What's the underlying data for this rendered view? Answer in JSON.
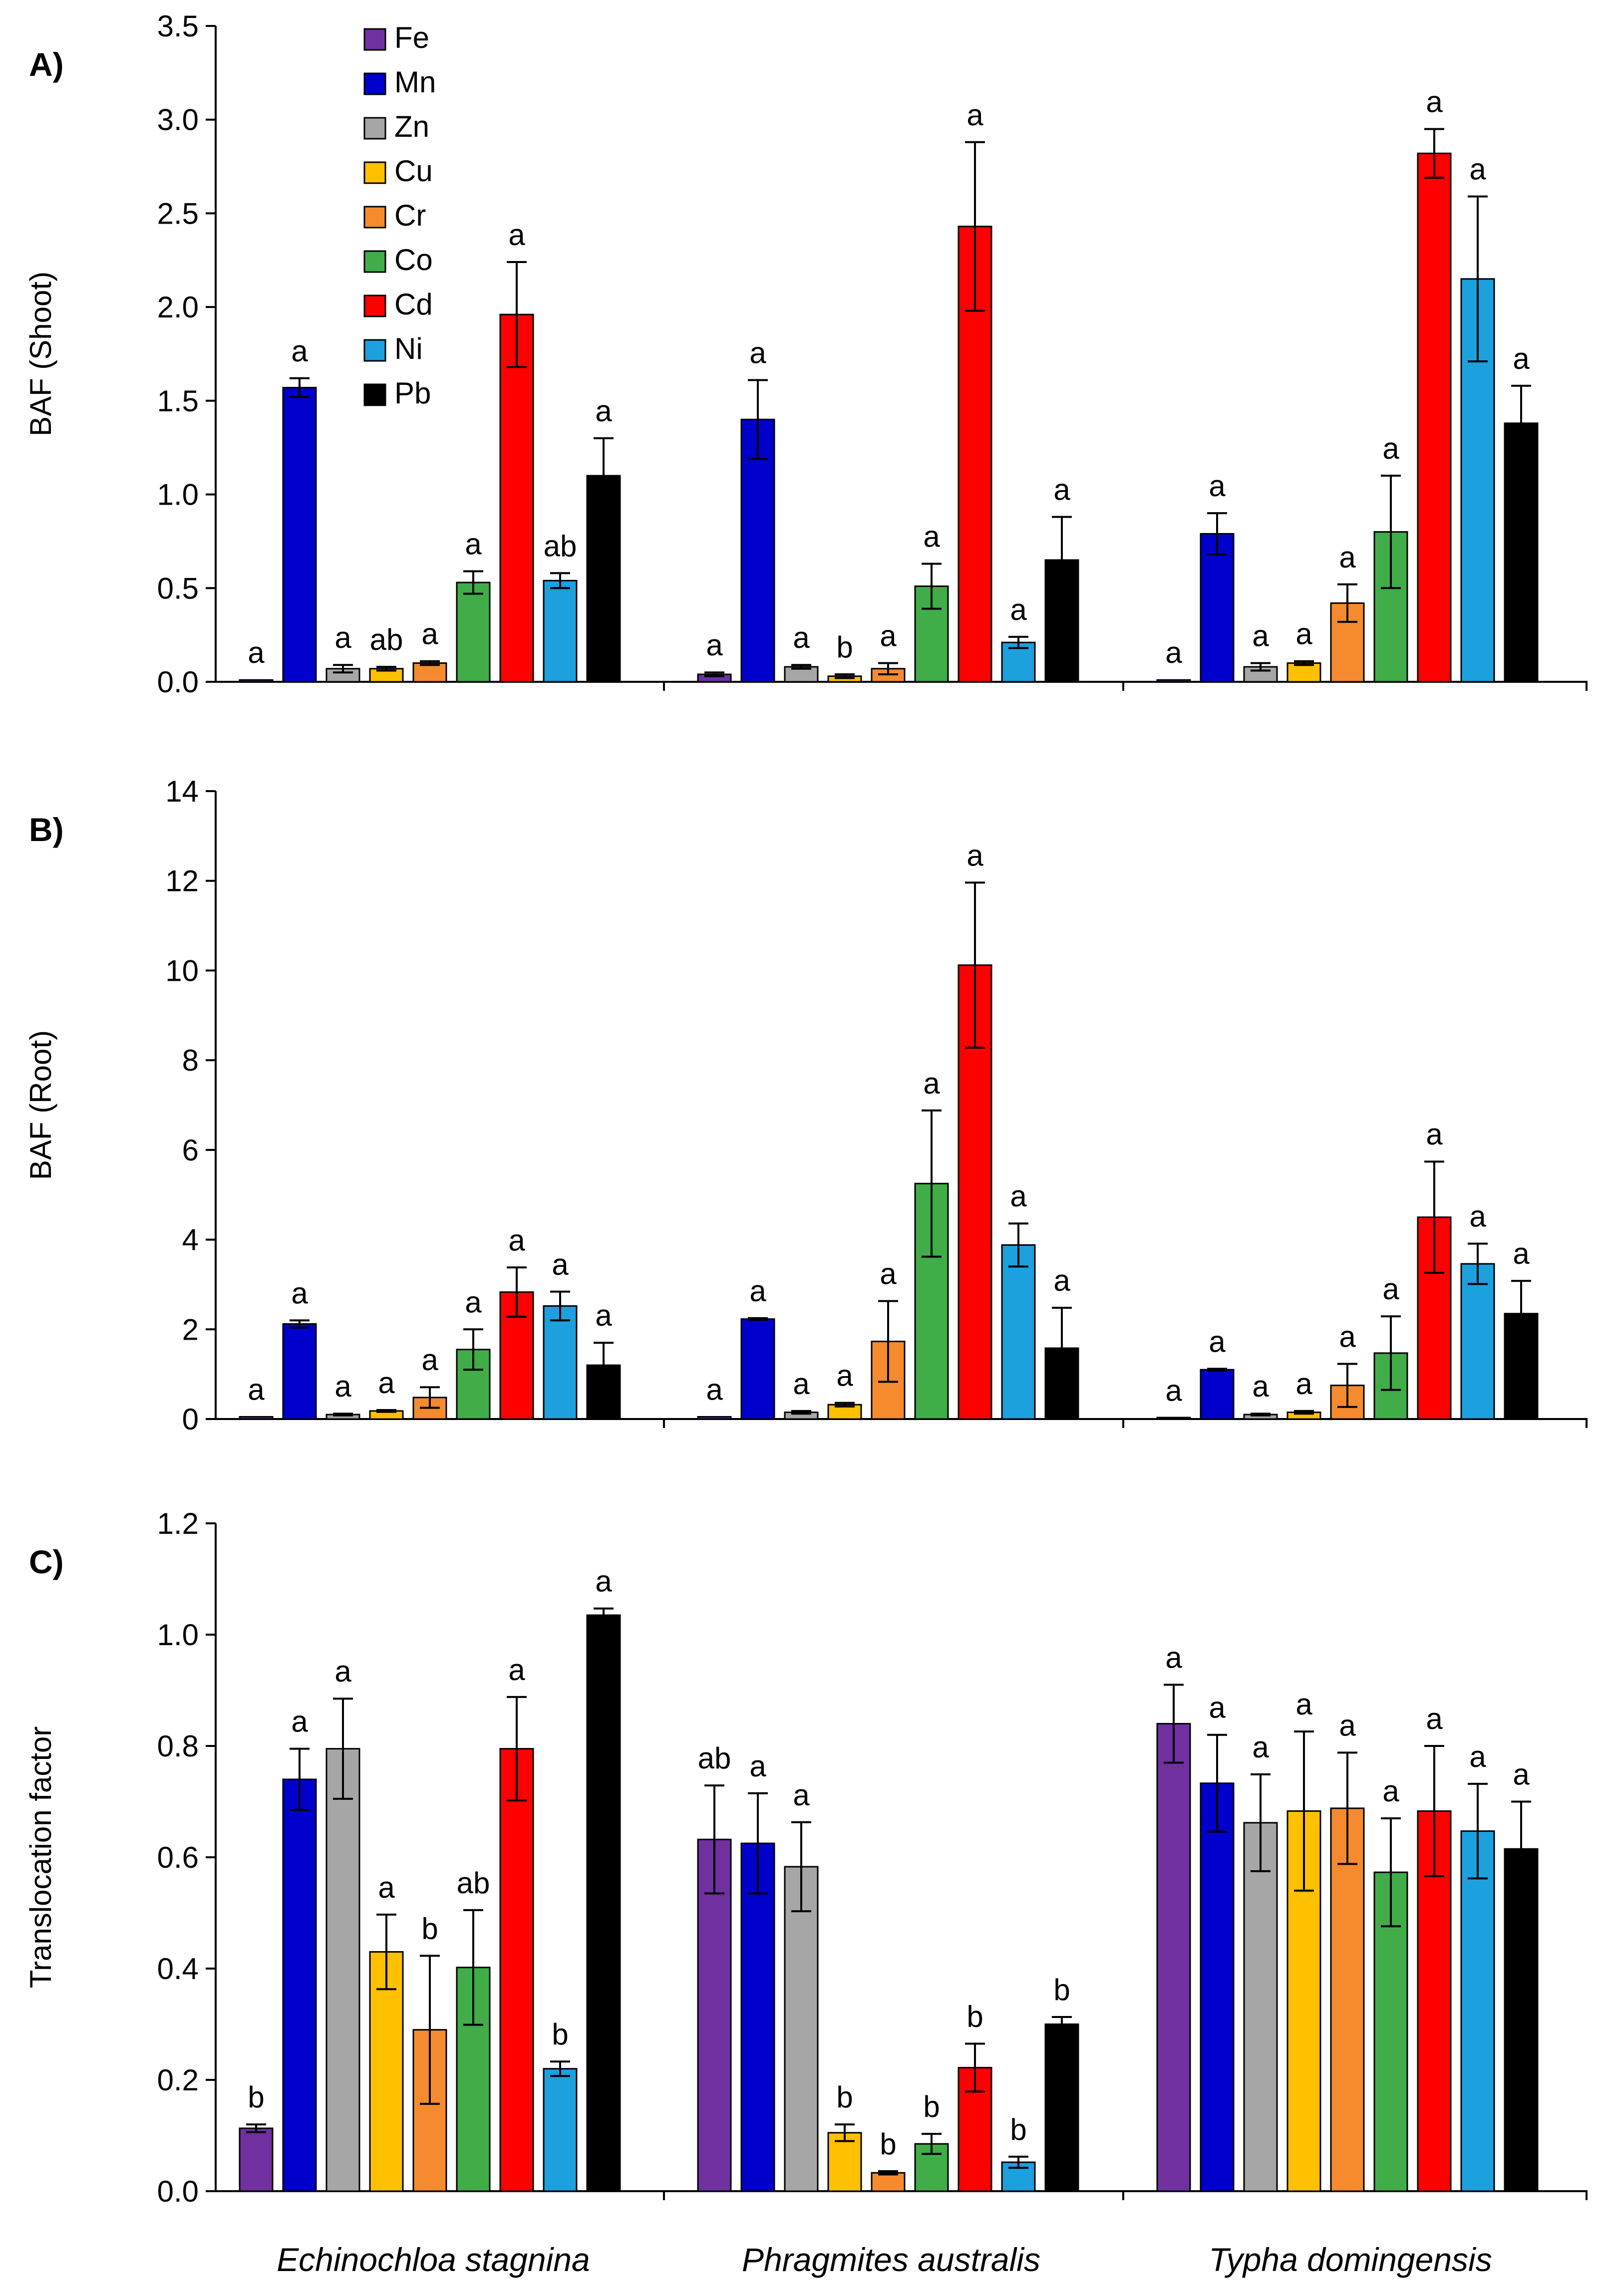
{
  "metals": [
    {
      "name": "Fe",
      "color": "#7030A0"
    },
    {
      "name": "Mn",
      "color": "#0000CC"
    },
    {
      "name": "Zn",
      "color": "#A6A6A6"
    },
    {
      "name": "Cu",
      "color": "#FFC000"
    },
    {
      "name": "Cr",
      "color": "#F58B2E"
    },
    {
      "name": "Co",
      "color": "#40AD48"
    },
    {
      "name": "Cd",
      "color": "#FF0000"
    },
    {
      "name": "Ni",
      "color": "#1CA0DE"
    },
    {
      "name": "Pb",
      "color": "#000000"
    }
  ],
  "chart_data": [
    {
      "type": "bar",
      "panel_label": "A)",
      "ylabel": "BAF (Shoot)",
      "ylim": [
        0,
        3.5
      ],
      "yticks": [
        "0.0",
        "0.5",
        "1.0",
        "1.5",
        "2.0",
        "2.5",
        "3.0",
        "3.5"
      ],
      "legend": "top-left",
      "categories": [
        "Echinochloa stagnina",
        "Phragmites australis",
        "Typha domingensis"
      ],
      "series": [
        {
          "name": "Fe",
          "values": [
            0.01,
            0.04,
            0.01
          ],
          "errors": [
            0.0,
            0.01,
            0.0
          ],
          "labels": [
            "a",
            "a",
            "a"
          ]
        },
        {
          "name": "Mn",
          "values": [
            1.57,
            1.4,
            0.79
          ],
          "errors": [
            0.05,
            0.21,
            0.11
          ],
          "labels": [
            "a",
            "a",
            "a"
          ]
        },
        {
          "name": "Zn",
          "values": [
            0.07,
            0.08,
            0.08
          ],
          "errors": [
            0.02,
            0.01,
            0.02
          ],
          "labels": [
            "a",
            "a",
            "a"
          ]
        },
        {
          "name": "Cu",
          "values": [
            0.07,
            0.03,
            0.1
          ],
          "errors": [
            0.01,
            0.01,
            0.01
          ],
          "labels": [
            "ab",
            "b",
            "a"
          ]
        },
        {
          "name": "Cr",
          "values": [
            0.1,
            0.07,
            0.42
          ],
          "errors": [
            0.01,
            0.03,
            0.1
          ],
          "labels": [
            "a",
            "a",
            "a"
          ]
        },
        {
          "name": "Co",
          "values": [
            0.53,
            0.51,
            0.8
          ],
          "errors": [
            0.06,
            0.12,
            0.3
          ],
          "labels": [
            "a",
            "a",
            "a"
          ]
        },
        {
          "name": "Cd",
          "values": [
            1.96,
            2.43,
            2.82
          ],
          "errors": [
            0.28,
            0.45,
            0.13
          ],
          "labels": [
            "a",
            "a",
            "a"
          ]
        },
        {
          "name": "Ni",
          "values": [
            0.54,
            0.21,
            2.15
          ],
          "errors": [
            0.04,
            0.03,
            0.44
          ],
          "labels": [
            "ab",
            "a",
            "a"
          ]
        },
        {
          "name": "Pb",
          "values": [
            1.1,
            0.65,
            1.38
          ],
          "errors": [
            0.2,
            0.23,
            0.2
          ],
          "labels": [
            "a",
            "a",
            "a"
          ]
        }
      ]
    },
    {
      "type": "bar",
      "panel_label": "B)",
      "ylabel": "BAF (Root)",
      "ylim": [
        0,
        14
      ],
      "yticks": [
        "0",
        "2",
        "4",
        "6",
        "8",
        "10",
        "12",
        "14"
      ],
      "categories": [
        "Echinochloa stagnina",
        "Phragmites australis",
        "Typha domingensis"
      ],
      "series": [
        {
          "name": "Fe",
          "values": [
            0.05,
            0.05,
            0.03
          ],
          "errors": [
            0.0,
            0.0,
            0.0
          ],
          "labels": [
            "a",
            "a",
            "a"
          ]
        },
        {
          "name": "Mn",
          "values": [
            2.12,
            2.23,
            1.1
          ],
          "errors": [
            0.08,
            0.02,
            0.02
          ],
          "labels": [
            "a",
            "a",
            "a"
          ]
        },
        {
          "name": "Zn",
          "values": [
            0.1,
            0.15,
            0.1
          ],
          "errors": [
            0.02,
            0.03,
            0.02
          ],
          "labels": [
            "a",
            "a",
            "a"
          ]
        },
        {
          "name": "Cu",
          "values": [
            0.18,
            0.32,
            0.15
          ],
          "errors": [
            0.02,
            0.04,
            0.03
          ],
          "labels": [
            "a",
            "a",
            "a"
          ]
        },
        {
          "name": "Cr",
          "values": [
            0.48,
            1.73,
            0.75
          ],
          "errors": [
            0.23,
            0.9,
            0.48
          ],
          "labels": [
            "a",
            "a",
            "a"
          ]
        },
        {
          "name": "Co",
          "values": [
            1.55,
            5.25,
            1.47
          ],
          "errors": [
            0.45,
            1.63,
            0.82
          ],
          "labels": [
            "a",
            "a",
            "a"
          ]
        },
        {
          "name": "Cd",
          "values": [
            2.83,
            10.12,
            4.5
          ],
          "errors": [
            0.55,
            1.84,
            1.24
          ],
          "labels": [
            "a",
            "a",
            "a"
          ]
        },
        {
          "name": "Ni",
          "values": [
            2.52,
            3.88,
            3.46
          ],
          "errors": [
            0.32,
            0.48,
            0.45
          ],
          "labels": [
            "a",
            "a",
            "a"
          ]
        },
        {
          "name": "Pb",
          "values": [
            1.2,
            1.58,
            2.35
          ],
          "errors": [
            0.5,
            0.9,
            0.73
          ],
          "labels": [
            "a",
            "a",
            "a"
          ]
        }
      ]
    },
    {
      "type": "bar",
      "panel_label": "C)",
      "ylabel": "Translocation factor",
      "ylim": [
        0,
        1.2
      ],
      "yticks": [
        "0.0",
        "0.2",
        "0.4",
        "0.6",
        "0.8",
        "1.0",
        "1.2"
      ],
      "categories": [
        "Echinochloa stagnina",
        "Phragmites australis",
        "Typha domingensis"
      ],
      "series": [
        {
          "name": "Fe",
          "values": [
            0.113,
            0.632,
            0.84
          ],
          "errors": [
            0.007,
            0.097,
            0.07
          ],
          "labels": [
            "b",
            "ab",
            "a"
          ]
        },
        {
          "name": "Mn",
          "values": [
            0.74,
            0.625,
            0.733
          ],
          "errors": [
            0.055,
            0.09,
            0.087
          ],
          "labels": [
            "a",
            "a",
            "a"
          ]
        },
        {
          "name": "Zn",
          "values": [
            0.795,
            0.583,
            0.662
          ],
          "errors": [
            0.09,
            0.08,
            0.087
          ],
          "labels": [
            "a",
            "a",
            "a"
          ]
        },
        {
          "name": "Cu",
          "values": [
            0.43,
            0.105,
            0.683
          ],
          "errors": [
            0.067,
            0.015,
            0.143
          ],
          "labels": [
            "a",
            "b",
            "a"
          ]
        },
        {
          "name": "Cr",
          "values": [
            0.29,
            0.033,
            0.688
          ],
          "errors": [
            0.133,
            0.003,
            0.1
          ],
          "labels": [
            "b",
            "b",
            "a"
          ]
        },
        {
          "name": "Co",
          "values": [
            0.402,
            0.085,
            0.573
          ],
          "errors": [
            0.103,
            0.018,
            0.097
          ],
          "labels": [
            "ab",
            "b",
            "a"
          ]
        },
        {
          "name": "Cd",
          "values": [
            0.795,
            0.222,
            0.683
          ],
          "errors": [
            0.093,
            0.043,
            0.117
          ],
          "labels": [
            "a",
            "b",
            "a"
          ]
        },
        {
          "name": "Ni",
          "values": [
            0.22,
            0.052,
            0.647
          ],
          "errors": [
            0.013,
            0.01,
            0.085
          ],
          "labels": [
            "b",
            "b",
            "a"
          ]
        },
        {
          "name": "Pb",
          "values": [
            1.035,
            0.3,
            0.615
          ],
          "errors": [
            0.012,
            0.013,
            0.085
          ],
          "labels": [
            "a",
            "b",
            "a"
          ]
        }
      ]
    }
  ]
}
